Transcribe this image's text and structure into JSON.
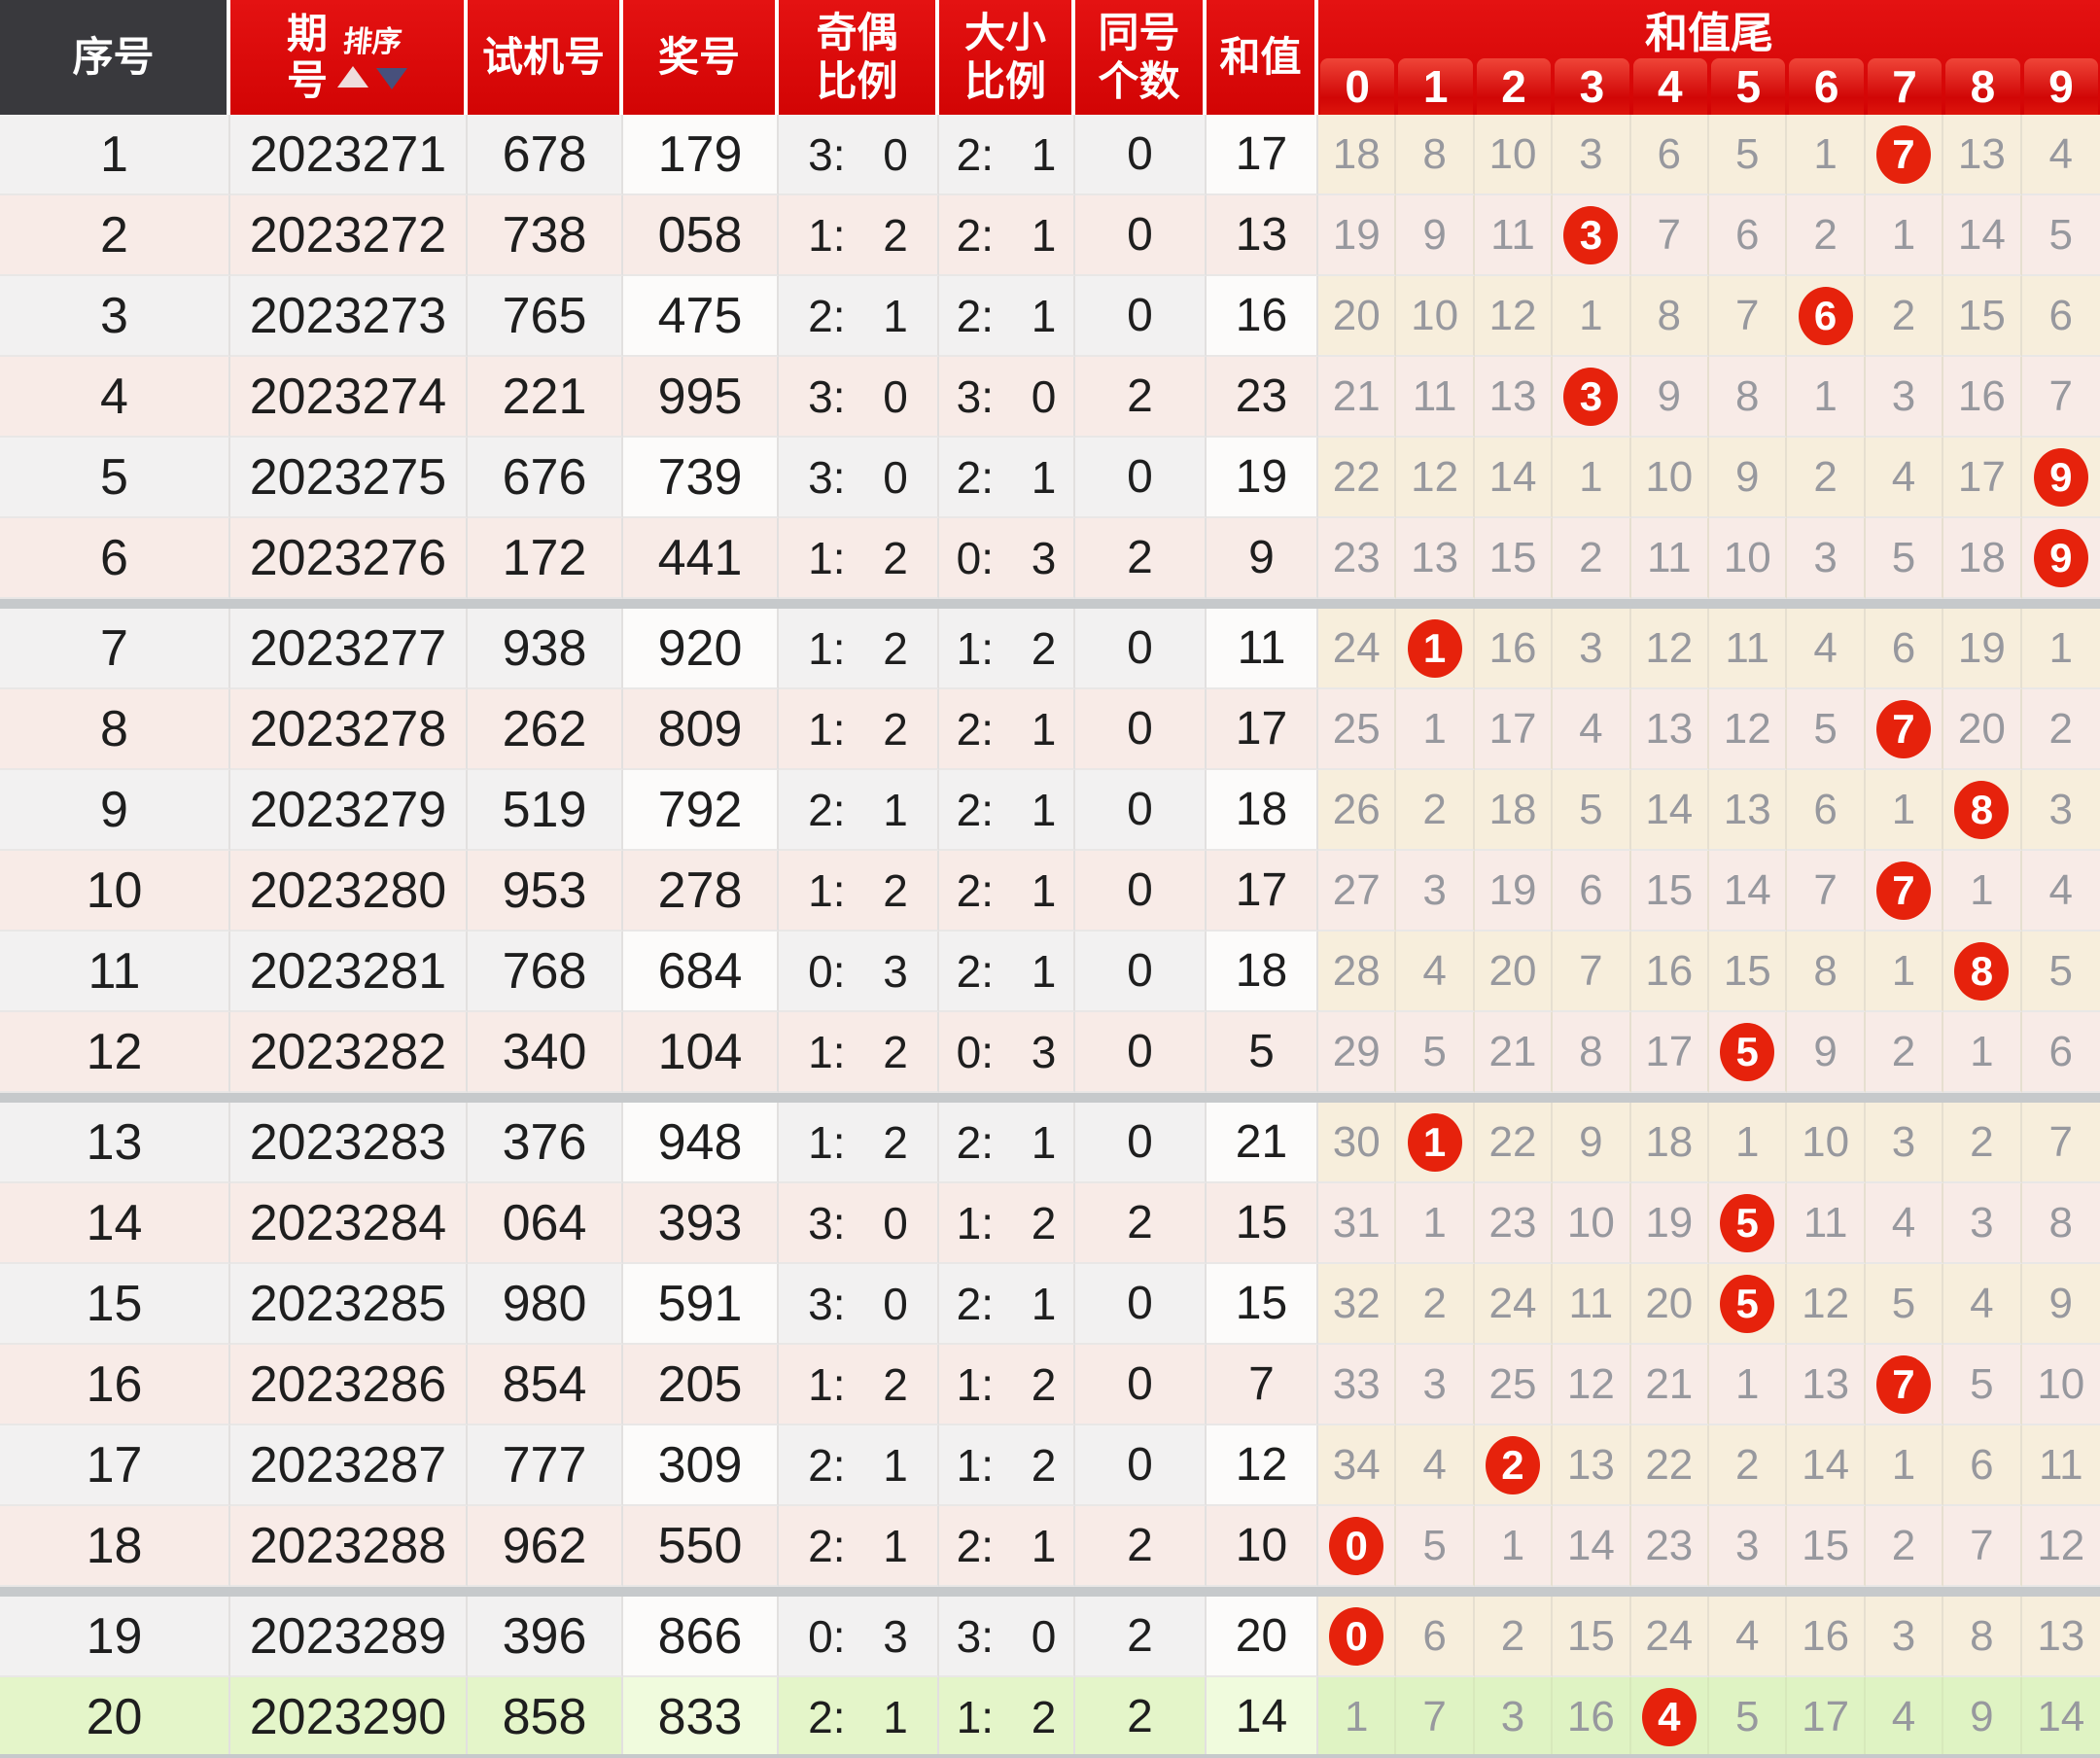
{
  "header": {
    "seq": "序号",
    "period_line1": "期",
    "period_line2": "号",
    "sort_label": "排序",
    "test": "试机号",
    "prize": "奖号",
    "odd_even_l1": "奇偶",
    "odd_even_l2": "比例",
    "big_small_l1": "大小",
    "big_small_l2": "比例",
    "same_l1": "同号",
    "same_l2": "个数",
    "sum": "和值",
    "tail_banner": "和值尾",
    "tail_digits": [
      "0",
      "1",
      "2",
      "3",
      "4",
      "5",
      "6",
      "7",
      "8",
      "9"
    ]
  },
  "colors": {
    "dark_header": "#39393d",
    "header_red": "#d20404",
    "circle_red": "#e6220c",
    "separator": "#c6c9cb",
    "row_gray": "#f2f1f1",
    "row_pink": "#f8ebe7",
    "col_white": "#fcfbfa",
    "tail_cream": "#f7eedc",
    "green_row": "#e4f5c9",
    "green_col": "#f0fbdd",
    "green_tail": "#dff3c3",
    "tail_text": "#97989e",
    "main_text": "#1e1e1e"
  },
  "separators_after": [
    6,
    12,
    18
  ],
  "rows": [
    {
      "seq": "1",
      "period": "2023271",
      "test": "678",
      "prize": "179",
      "odd_even": "3: 0",
      "big_small": "2: 1",
      "same": "0",
      "sum": "17",
      "tails": [
        18,
        8,
        10,
        3,
        6,
        5,
        1,
        7,
        13,
        4
      ],
      "hit": 7
    },
    {
      "seq": "2",
      "period": "2023272",
      "test": "738",
      "prize": "058",
      "odd_even": "1: 2",
      "big_small": "2: 1",
      "same": "0",
      "sum": "13",
      "tails": [
        19,
        9,
        11,
        3,
        7,
        6,
        2,
        1,
        14,
        5
      ],
      "hit": 3
    },
    {
      "seq": "3",
      "period": "2023273",
      "test": "765",
      "prize": "475",
      "odd_even": "2: 1",
      "big_small": "2: 1",
      "same": "0",
      "sum": "16",
      "tails": [
        20,
        10,
        12,
        1,
        8,
        7,
        6,
        2,
        15,
        6
      ],
      "hit": 6
    },
    {
      "seq": "4",
      "period": "2023274",
      "test": "221",
      "prize": "995",
      "odd_even": "3: 0",
      "big_small": "3: 0",
      "same": "2",
      "sum": "23",
      "tails": [
        21,
        11,
        13,
        3,
        9,
        8,
        1,
        3,
        16,
        7
      ],
      "hit": 3
    },
    {
      "seq": "5",
      "period": "2023275",
      "test": "676",
      "prize": "739",
      "odd_even": "3: 0",
      "big_small": "2: 1",
      "same": "0",
      "sum": "19",
      "tails": [
        22,
        12,
        14,
        1,
        10,
        9,
        2,
        4,
        17,
        9
      ],
      "hit": 9
    },
    {
      "seq": "6",
      "period": "2023276",
      "test": "172",
      "prize": "441",
      "odd_even": "1: 2",
      "big_small": "0: 3",
      "same": "2",
      "sum": "9",
      "tails": [
        23,
        13,
        15,
        2,
        11,
        10,
        3,
        5,
        18,
        9
      ],
      "hit": 9
    },
    {
      "seq": "7",
      "period": "2023277",
      "test": "938",
      "prize": "920",
      "odd_even": "1: 2",
      "big_small": "1: 2",
      "same": "0",
      "sum": "11",
      "tails": [
        24,
        1,
        16,
        3,
        12,
        11,
        4,
        6,
        19,
        1
      ],
      "hit": 1
    },
    {
      "seq": "8",
      "period": "2023278",
      "test": "262",
      "prize": "809",
      "odd_even": "1: 2",
      "big_small": "2: 1",
      "same": "0",
      "sum": "17",
      "tails": [
        25,
        1,
        17,
        4,
        13,
        12,
        5,
        7,
        20,
        2
      ],
      "hit": 7
    },
    {
      "seq": "9",
      "period": "2023279",
      "test": "519",
      "prize": "792",
      "odd_even": "2: 1",
      "big_small": "2: 1",
      "same": "0",
      "sum": "18",
      "tails": [
        26,
        2,
        18,
        5,
        14,
        13,
        6,
        1,
        8,
        3
      ],
      "hit": 8
    },
    {
      "seq": "10",
      "period": "2023280",
      "test": "953",
      "prize": "278",
      "odd_even": "1: 2",
      "big_small": "2: 1",
      "same": "0",
      "sum": "17",
      "tails": [
        27,
        3,
        19,
        6,
        15,
        14,
        7,
        7,
        1,
        4
      ],
      "hit": 7
    },
    {
      "seq": "11",
      "period": "2023281",
      "test": "768",
      "prize": "684",
      "odd_even": "0: 3",
      "big_small": "2: 1",
      "same": "0",
      "sum": "18",
      "tails": [
        28,
        4,
        20,
        7,
        16,
        15,
        8,
        1,
        8,
        5
      ],
      "hit": 8
    },
    {
      "seq": "12",
      "period": "2023282",
      "test": "340",
      "prize": "104",
      "odd_even": "1: 2",
      "big_small": "0: 3",
      "same": "0",
      "sum": "5",
      "tails": [
        29,
        5,
        21,
        8,
        17,
        5,
        9,
        2,
        1,
        6
      ],
      "hit": 5
    },
    {
      "seq": "13",
      "period": "2023283",
      "test": "376",
      "prize": "948",
      "odd_even": "1: 2",
      "big_small": "2: 1",
      "same": "0",
      "sum": "21",
      "tails": [
        30,
        1,
        22,
        9,
        18,
        1,
        10,
        3,
        2,
        7
      ],
      "hit": 1
    },
    {
      "seq": "14",
      "period": "2023284",
      "test": "064",
      "prize": "393",
      "odd_even": "3: 0",
      "big_small": "1: 2",
      "same": "2",
      "sum": "15",
      "tails": [
        31,
        1,
        23,
        10,
        19,
        5,
        11,
        4,
        3,
        8
      ],
      "hit": 5
    },
    {
      "seq": "15",
      "period": "2023285",
      "test": "980",
      "prize": "591",
      "odd_even": "3: 0",
      "big_small": "2: 1",
      "same": "0",
      "sum": "15",
      "tails": [
        32,
        2,
        24,
        11,
        20,
        5,
        12,
        5,
        4,
        9
      ],
      "hit": 5
    },
    {
      "seq": "16",
      "period": "2023286",
      "test": "854",
      "prize": "205",
      "odd_even": "1: 2",
      "big_small": "1: 2",
      "same": "0",
      "sum": "7",
      "tails": [
        33,
        3,
        25,
        12,
        21,
        1,
        13,
        7,
        5,
        10
      ],
      "hit": 7
    },
    {
      "seq": "17",
      "period": "2023287",
      "test": "777",
      "prize": "309",
      "odd_even": "2: 1",
      "big_small": "1: 2",
      "same": "0",
      "sum": "12",
      "tails": [
        34,
        4,
        2,
        13,
        22,
        2,
        14,
        1,
        6,
        11
      ],
      "hit": 2
    },
    {
      "seq": "18",
      "period": "2023288",
      "test": "962",
      "prize": "550",
      "odd_even": "2: 1",
      "big_small": "2: 1",
      "same": "2",
      "sum": "10",
      "tails": [
        0,
        5,
        1,
        14,
        23,
        3,
        15,
        2,
        7,
        12
      ],
      "hit": 0
    },
    {
      "seq": "19",
      "period": "2023289",
      "test": "396",
      "prize": "866",
      "odd_even": "0: 3",
      "big_small": "3: 0",
      "same": "2",
      "sum": "20",
      "tails": [
        0,
        6,
        2,
        15,
        24,
        4,
        16,
        3,
        8,
        13
      ],
      "hit": 0
    },
    {
      "seq": "20",
      "period": "2023290",
      "test": "858",
      "prize": "833",
      "odd_even": "2: 1",
      "big_small": "1: 2",
      "same": "2",
      "sum": "14",
      "tails": [
        1,
        7,
        3,
        16,
        4,
        5,
        17,
        4,
        9,
        14
      ],
      "hit": 4
    }
  ]
}
